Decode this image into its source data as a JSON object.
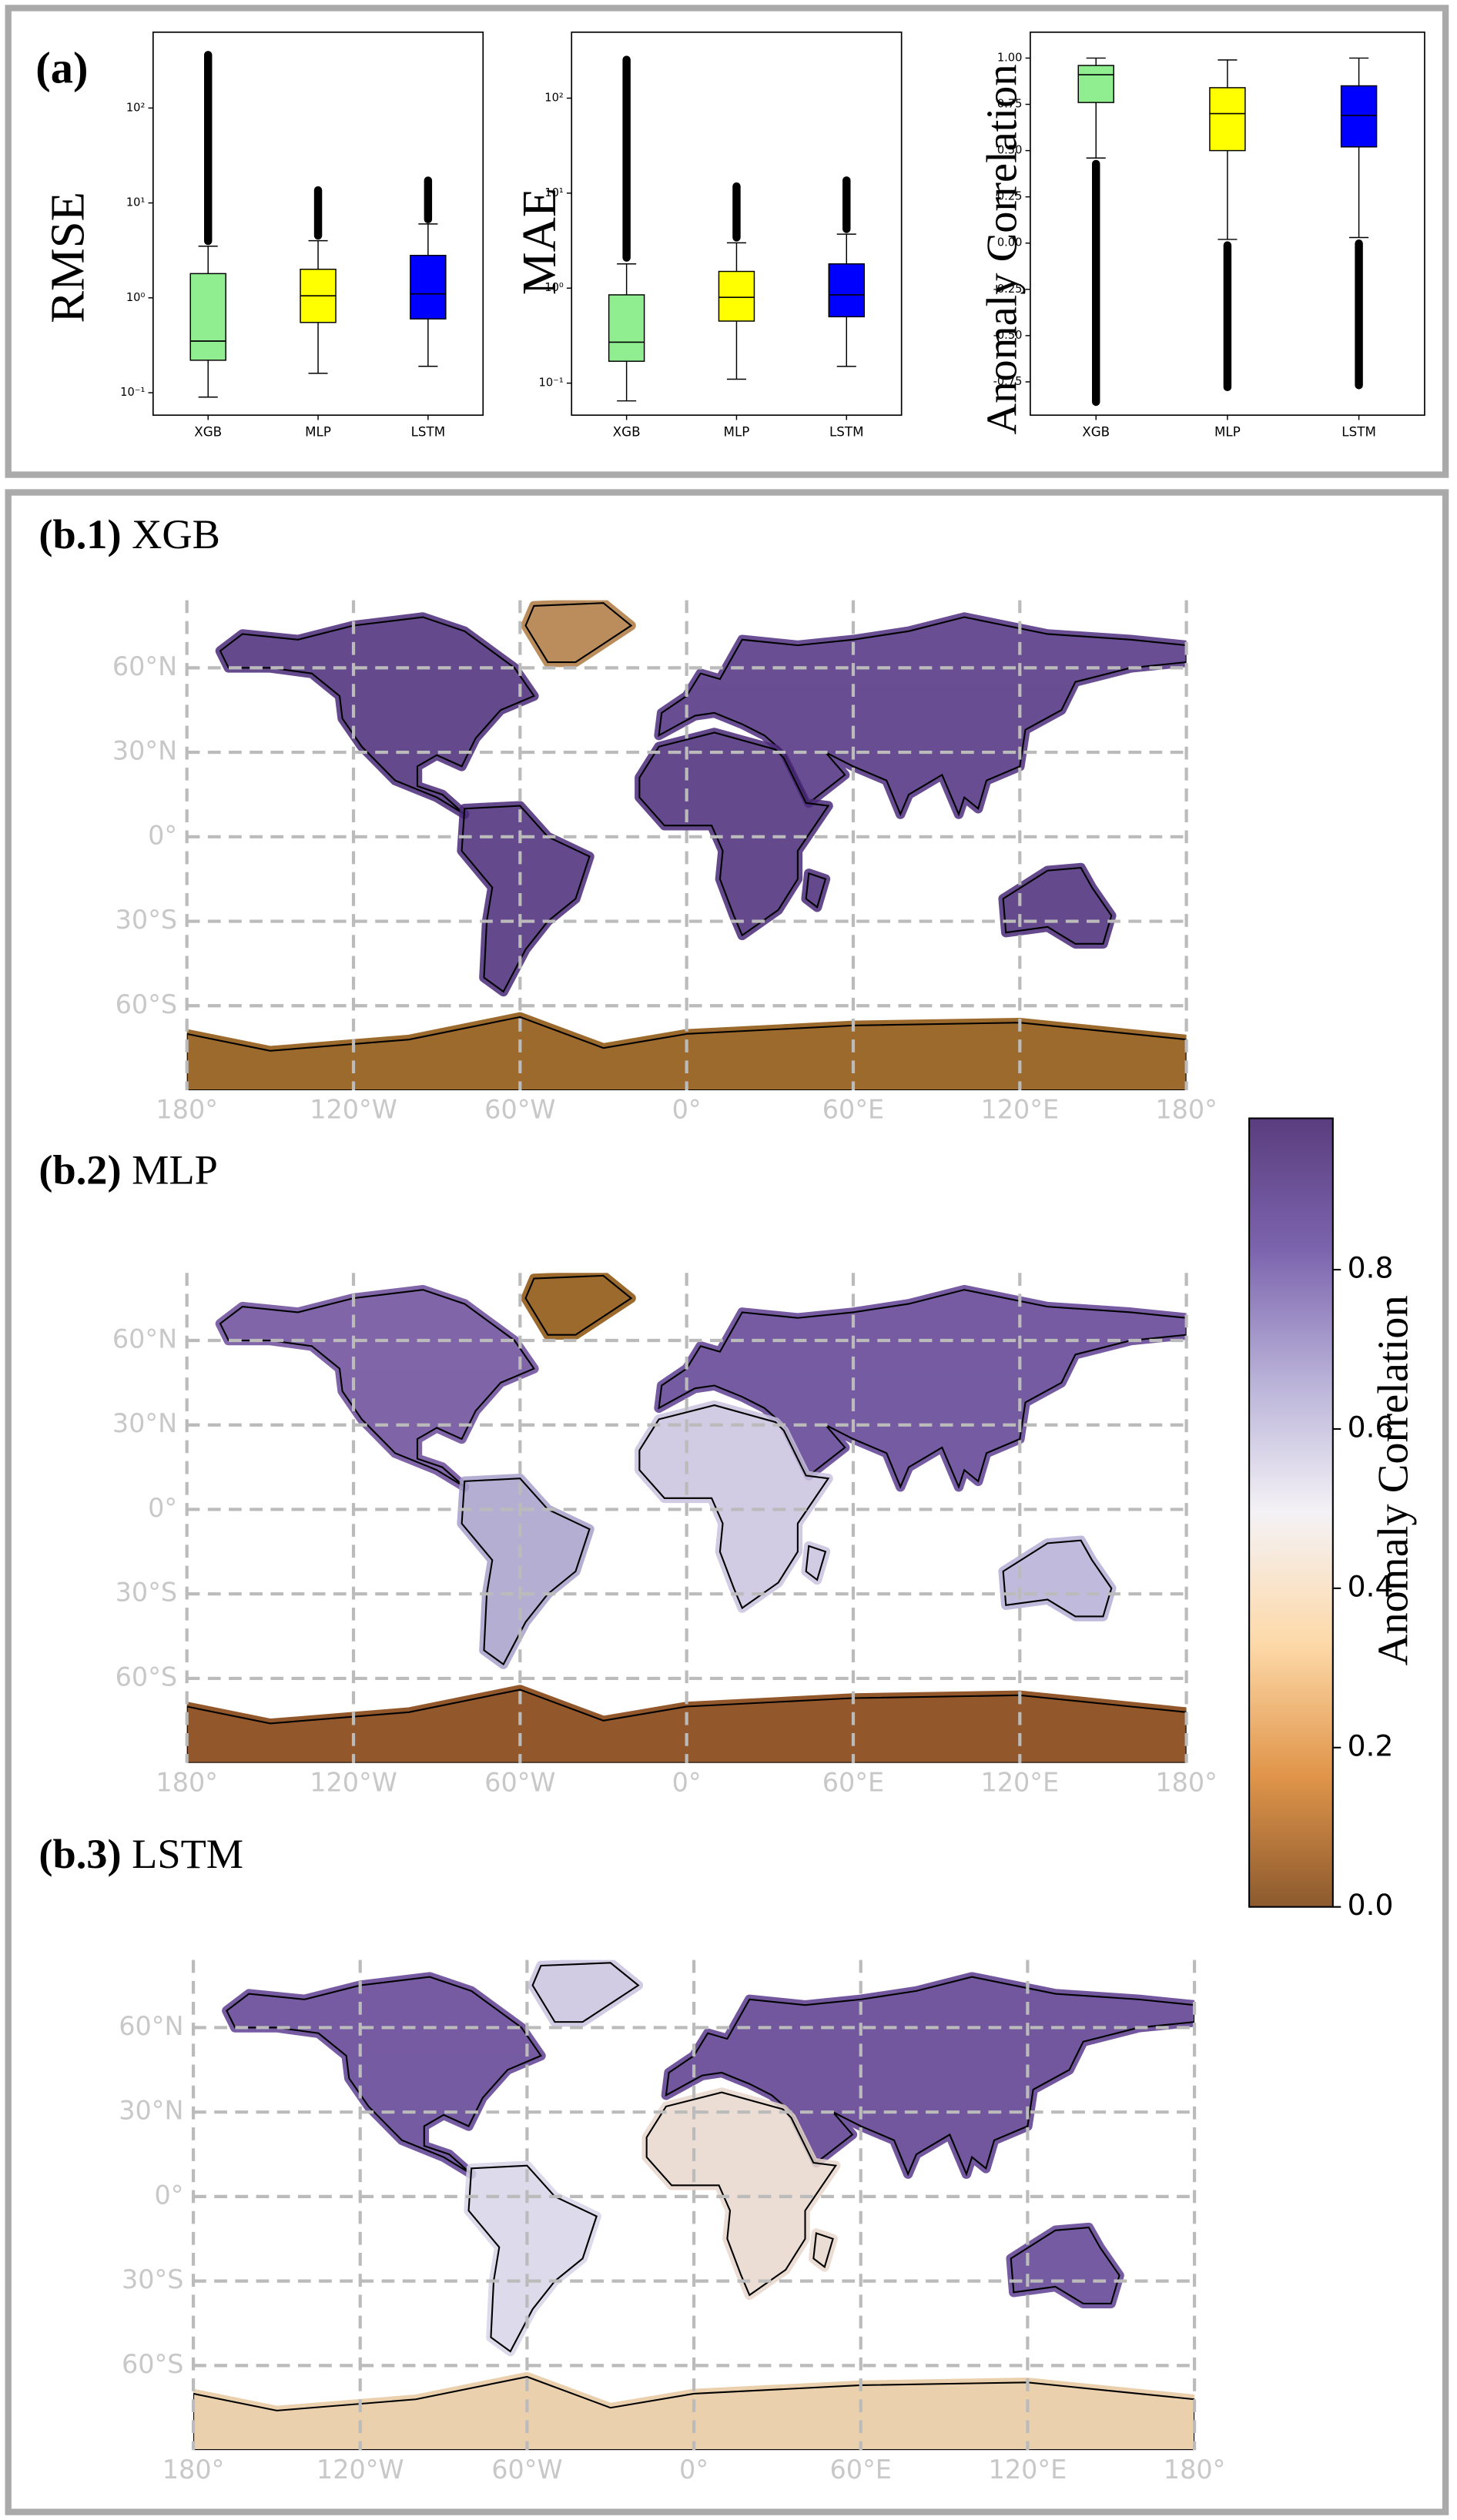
{
  "chart_data": [
    {
      "type": "box",
      "panel_label": "(a)",
      "ylabel": "RMSE",
      "log": true,
      "ylim": [
        0.058,
        630
      ],
      "yticks": [
        {
          "value": 0.1,
          "label": "10⁻¹"
        },
        {
          "value": 1,
          "label": "10⁰"
        },
        {
          "value": 10,
          "label": "10¹"
        },
        {
          "value": 100,
          "label": "10²"
        }
      ],
      "categories": [
        "XGB",
        "MLP",
        "LSTM"
      ],
      "colors": [
        "#90ee90",
        "#ffff00",
        "#0000ff"
      ],
      "boxes": [
        {
          "min": 0.09,
          "q1": 0.22,
          "median": 0.35,
          "q3": 1.8,
          "max": 3.5,
          "fliers": [
            3.6,
            400
          ]
        },
        {
          "min": 0.16,
          "q1": 0.55,
          "median": 1.05,
          "q3": 2.0,
          "max": 4.0,
          "fliers": [
            4.1,
            15
          ]
        },
        {
          "min": 0.19,
          "q1": 0.6,
          "median": 1.1,
          "q3": 2.8,
          "max": 6.0,
          "fliers": [
            6.1,
            19
          ]
        }
      ]
    },
    {
      "type": "box",
      "ylabel": "MAE",
      "log": true,
      "ylim": [
        0.046,
        495
      ],
      "yticks": [
        {
          "value": 0.1,
          "label": "10⁻¹"
        },
        {
          "value": 1,
          "label": "10⁰"
        },
        {
          "value": 10,
          "label": "10¹"
        },
        {
          "value": 100,
          "label": "10²"
        }
      ],
      "categories": [
        "XGB",
        "MLP",
        "LSTM"
      ],
      "colors": [
        "#90ee90",
        "#ffff00",
        "#0000ff"
      ],
      "boxes": [
        {
          "min": 0.065,
          "q1": 0.17,
          "median": 0.27,
          "q3": 0.85,
          "max": 1.8,
          "fliers": [
            1.9,
            280
          ]
        },
        {
          "min": 0.11,
          "q1": 0.45,
          "median": 0.8,
          "q3": 1.5,
          "max": 3.0,
          "fliers": [
            3.1,
            13
          ]
        },
        {
          "min": 0.15,
          "q1": 0.5,
          "median": 0.85,
          "q3": 1.8,
          "max": 3.7,
          "fliers": [
            3.8,
            15
          ]
        }
      ]
    },
    {
      "type": "box",
      "ylabel": "Anomaly Correlation",
      "log": false,
      "ylim": [
        -0.93,
        1.14
      ],
      "yticks": [
        {
          "value": -0.75,
          "label": "-0.75"
        },
        {
          "value": -0.5,
          "label": "-0.50"
        },
        {
          "value": -0.25,
          "label": "-0.25"
        },
        {
          "value": 0,
          "label": "0.00"
        },
        {
          "value": 0.25,
          "label": "0.25"
        },
        {
          "value": 0.5,
          "label": "0.50"
        },
        {
          "value": 0.75,
          "label": "0.75"
        },
        {
          "value": 1,
          "label": "1.00"
        }
      ],
      "categories": [
        "XGB",
        "MLP",
        "LSTM"
      ],
      "colors": [
        "#90ee90",
        "#ffff00",
        "#0000ff"
      ],
      "boxes": [
        {
          "min": 0.46,
          "q1": 0.76,
          "median": 0.91,
          "q3": 0.96,
          "max": 1.0,
          "fliers": [
            -0.88,
            0.45
          ]
        },
        {
          "min": 0.02,
          "q1": 0.5,
          "median": 0.7,
          "q3": 0.84,
          "max": 0.99,
          "fliers": [
            -0.8,
            0.01
          ]
        },
        {
          "min": 0.03,
          "q1": 0.52,
          "median": 0.69,
          "q3": 0.85,
          "max": 1.0,
          "fliers": [
            -0.79,
            0.02
          ]
        }
      ]
    },
    {
      "type": "map",
      "panel_label": "(b.1)",
      "title": "XGB",
      "xlim": [
        -180,
        180
      ],
      "ylim": [
        -90,
        84
      ],
      "grid": true,
      "xticks": [
        {
          "value": -180,
          "label": "180°"
        },
        {
          "value": -120,
          "label": "120°W"
        },
        {
          "value": -60,
          "label": "60°W"
        },
        {
          "value": 0,
          "label": "0°"
        },
        {
          "value": 60,
          "label": "60°E"
        },
        {
          "value": 120,
          "label": "120°E"
        },
        {
          "value": 180,
          "label": "180°"
        }
      ],
      "yticks": [
        {
          "value": 60,
          "label": "60°N"
        },
        {
          "value": 30,
          "label": "30°N"
        },
        {
          "value": 0,
          "label": "0°"
        },
        {
          "value": -30,
          "label": "30°S"
        },
        {
          "value": -60,
          "label": "60°S"
        }
      ]
    },
    {
      "type": "map",
      "panel_label": "(b.2)",
      "title": "MLP",
      "xlim": [
        -180,
        180
      ],
      "ylim": [
        -90,
        84
      ],
      "grid": true,
      "xticks": [
        {
          "value": -180,
          "label": "180°"
        },
        {
          "value": -120,
          "label": "120°W"
        },
        {
          "value": -60,
          "label": "60°W"
        },
        {
          "value": 0,
          "label": "0°"
        },
        {
          "value": 60,
          "label": "60°E"
        },
        {
          "value": 120,
          "label": "120°E"
        },
        {
          "value": 180,
          "label": "180°"
        }
      ],
      "yticks": [
        {
          "value": 60,
          "label": "60°N"
        },
        {
          "value": 30,
          "label": "30°N"
        },
        {
          "value": 0,
          "label": "0°"
        },
        {
          "value": -30,
          "label": "30°S"
        },
        {
          "value": -60,
          "label": "60°S"
        }
      ]
    },
    {
      "type": "map",
      "panel_label": "(b.3)",
      "title": "LSTM",
      "xlim": [
        -180,
        180
      ],
      "ylim": [
        -90,
        84
      ],
      "grid": true,
      "xticks": [
        {
          "value": -180,
          "label": "180°"
        },
        {
          "value": -120,
          "label": "120°W"
        },
        {
          "value": -60,
          "label": "60°W"
        },
        {
          "value": 0,
          "label": "0°"
        },
        {
          "value": 60,
          "label": "60°E"
        },
        {
          "value": 120,
          "label": "120°E"
        },
        {
          "value": 180,
          "label": "180°"
        }
      ],
      "yticks": [
        {
          "value": 60,
          "label": "60°N"
        },
        {
          "value": 30,
          "label": "30°N"
        },
        {
          "value": 0,
          "label": "0°"
        },
        {
          "value": -30,
          "label": "30°S"
        },
        {
          "value": -60,
          "label": "60°S"
        }
      ]
    },
    {
      "type": "colorbar",
      "label": "Anomaly Correlation",
      "ylim": [
        0,
        0.99
      ],
      "yticks": [
        {
          "value": 0,
          "label": "0.0"
        },
        {
          "value": 0.2,
          "label": "0.2"
        },
        {
          "value": 0.4,
          "label": "0.4"
        },
        {
          "value": 0.6,
          "label": "0.6"
        },
        {
          "value": 0.8,
          "label": "0.8"
        }
      ],
      "colors": [
        "#8c5a2e",
        "#e0954a",
        "#fdd9a8",
        "#f4f2f6",
        "#b9b2d8",
        "#7c64ae",
        "#5a3d7e"
      ]
    }
  ]
}
